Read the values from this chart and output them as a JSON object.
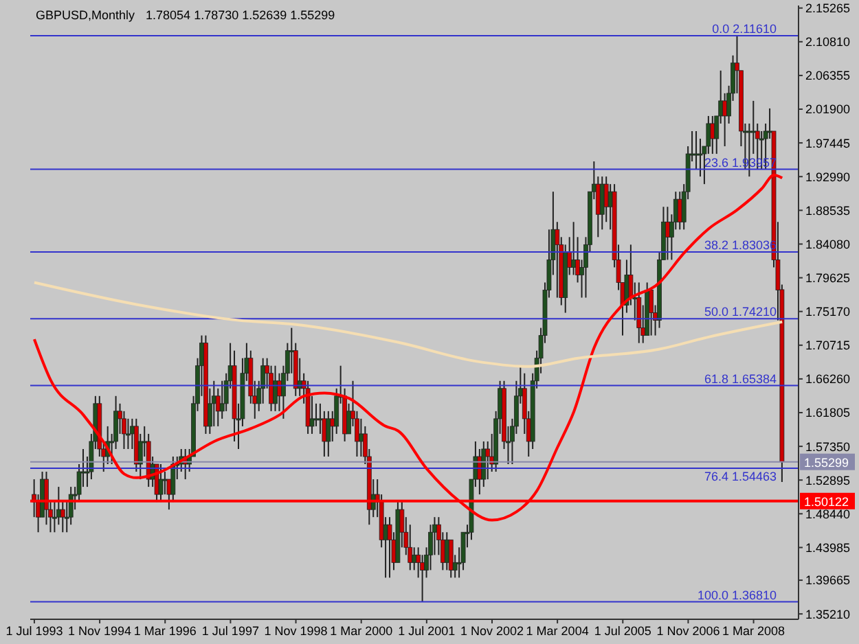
{
  "chart_data": {
    "type": "candlestick",
    "title": "GBPUSD,Monthly",
    "subtitle": "1.78054 1.78730 1.52639 1.55299",
    "x": [
      "1993-07",
      "1993-08",
      "1993-09",
      "1993-10",
      "1993-11",
      "1993-12",
      "1994-01",
      "1994-02",
      "1994-03",
      "1994-04",
      "1994-05",
      "1994-06",
      "1994-07",
      "1994-08",
      "1994-09",
      "1994-10",
      "1994-11",
      "1994-12",
      "1995-01",
      "1995-02",
      "1995-03",
      "1995-04",
      "1995-05",
      "1995-06",
      "1995-07",
      "1995-08",
      "1995-09",
      "1995-10",
      "1995-11",
      "1995-12",
      "1996-01",
      "1996-02",
      "1996-03",
      "1996-04",
      "1996-05",
      "1996-06",
      "1996-07",
      "1996-08",
      "1996-09",
      "1996-10",
      "1996-11",
      "1996-12",
      "1997-01",
      "1997-02",
      "1997-03",
      "1997-04",
      "1997-05",
      "1997-06",
      "1997-07",
      "1997-08",
      "1997-09",
      "1997-10",
      "1997-11",
      "1997-12",
      "1998-01",
      "1998-02",
      "1998-03",
      "1998-04",
      "1998-05",
      "1998-06",
      "1998-07",
      "1998-08",
      "1998-09",
      "1998-10",
      "1998-11",
      "1998-12",
      "1999-01",
      "1999-02",
      "1999-03",
      "1999-04",
      "1999-05",
      "1999-06",
      "1999-07",
      "1999-08",
      "1999-09",
      "1999-10",
      "1999-11",
      "1999-12",
      "2000-01",
      "2000-02",
      "2000-03",
      "2000-04",
      "2000-05",
      "2000-06",
      "2000-07",
      "2000-08",
      "2000-09",
      "2000-10",
      "2000-11",
      "2000-12",
      "2001-01",
      "2001-02",
      "2001-03",
      "2001-04",
      "2001-05",
      "2001-06",
      "2001-07",
      "2001-08",
      "2001-09",
      "2001-10",
      "2001-11",
      "2001-12",
      "2002-01",
      "2002-02",
      "2002-03",
      "2002-04",
      "2002-05",
      "2002-06",
      "2002-07",
      "2002-08",
      "2002-09",
      "2002-10",
      "2002-11",
      "2002-12",
      "2003-01",
      "2003-02",
      "2003-03",
      "2003-04",
      "2003-05",
      "2003-06",
      "2003-07",
      "2003-08",
      "2003-09",
      "2003-10",
      "2003-11",
      "2003-12",
      "2004-01",
      "2004-02",
      "2004-03",
      "2004-04",
      "2004-05",
      "2004-06",
      "2004-07",
      "2004-08",
      "2004-09",
      "2004-10",
      "2004-11",
      "2004-12",
      "2005-01",
      "2005-02",
      "2005-03",
      "2005-04",
      "2005-05",
      "2005-06",
      "2005-07",
      "2005-08",
      "2005-09",
      "2005-10",
      "2005-11",
      "2005-12",
      "2006-01",
      "2006-02",
      "2006-03",
      "2006-04",
      "2006-05",
      "2006-06",
      "2006-07",
      "2006-08",
      "2006-09",
      "2006-10",
      "2006-11",
      "2006-12",
      "2007-01",
      "2007-02",
      "2007-03",
      "2007-04",
      "2007-05",
      "2007-06",
      "2007-07",
      "2007-08",
      "2007-09",
      "2007-10",
      "2007-11",
      "2007-12",
      "2008-01",
      "2008-02",
      "2008-03",
      "2008-04",
      "2008-05",
      "2008-06",
      "2008-07",
      "2008-08",
      "2008-09",
      "2008-10"
    ],
    "ohlc": [
      [
        1.51,
        1.53,
        1.48,
        1.5
      ],
      [
        1.5,
        1.51,
        1.46,
        1.48
      ],
      [
        1.48,
        1.54,
        1.48,
        1.53
      ],
      [
        1.53,
        1.54,
        1.47,
        1.49
      ],
      [
        1.49,
        1.5,
        1.46,
        1.48
      ],
      [
        1.48,
        1.5,
        1.46,
        1.48
      ],
      [
        1.48,
        1.52,
        1.47,
        1.49
      ],
      [
        1.49,
        1.5,
        1.46,
        1.48
      ],
      [
        1.48,
        1.5,
        1.46,
        1.48
      ],
      [
        1.48,
        1.52,
        1.47,
        1.51
      ],
      [
        1.51,
        1.52,
        1.49,
        1.51
      ],
      [
        1.51,
        1.55,
        1.5,
        1.54
      ],
      [
        1.54,
        1.57,
        1.52,
        1.54
      ],
      [
        1.54,
        1.56,
        1.52,
        1.54
      ],
      [
        1.54,
        1.59,
        1.53,
        1.58
      ],
      [
        1.58,
        1.64,
        1.57,
        1.63
      ],
      [
        1.63,
        1.64,
        1.56,
        1.57
      ],
      [
        1.57,
        1.58,
        1.54,
        1.56
      ],
      [
        1.56,
        1.6,
        1.55,
        1.58
      ],
      [
        1.58,
        1.59,
        1.55,
        1.58
      ],
      [
        1.58,
        1.64,
        1.57,
        1.62
      ],
      [
        1.62,
        1.63,
        1.59,
        1.61
      ],
      [
        1.61,
        1.62,
        1.57,
        1.59
      ],
      [
        1.59,
        1.61,
        1.57,
        1.59
      ],
      [
        1.59,
        1.61,
        1.57,
        1.6
      ],
      [
        1.6,
        1.61,
        1.54,
        1.55
      ],
      [
        1.55,
        1.59,
        1.53,
        1.58
      ],
      [
        1.58,
        1.6,
        1.56,
        1.58
      ],
      [
        1.58,
        1.59,
        1.52,
        1.53
      ],
      [
        1.53,
        1.56,
        1.52,
        1.55
      ],
      [
        1.55,
        1.55,
        1.5,
        1.51
      ],
      [
        1.51,
        1.55,
        1.5,
        1.53
      ],
      [
        1.53,
        1.54,
        1.51,
        1.53
      ],
      [
        1.53,
        1.53,
        1.49,
        1.51
      ],
      [
        1.51,
        1.56,
        1.5,
        1.55
      ],
      [
        1.55,
        1.56,
        1.53,
        1.55
      ],
      [
        1.55,
        1.57,
        1.54,
        1.56
      ],
      [
        1.56,
        1.57,
        1.53,
        1.55
      ],
      [
        1.55,
        1.57,
        1.54,
        1.56
      ],
      [
        1.56,
        1.64,
        1.56,
        1.63
      ],
      [
        1.63,
        1.69,
        1.62,
        1.68
      ],
      [
        1.68,
        1.72,
        1.64,
        1.71
      ],
      [
        1.71,
        1.72,
        1.59,
        1.6
      ],
      [
        1.6,
        1.65,
        1.59,
        1.63
      ],
      [
        1.63,
        1.66,
        1.6,
        1.64
      ],
      [
        1.64,
        1.65,
        1.6,
        1.62
      ],
      [
        1.62,
        1.66,
        1.61,
        1.63
      ],
      [
        1.63,
        1.67,
        1.62,
        1.66
      ],
      [
        1.66,
        1.71,
        1.65,
        1.68
      ],
      [
        1.68,
        1.7,
        1.58,
        1.61
      ],
      [
        1.61,
        1.63,
        1.57,
        1.61
      ],
      [
        1.61,
        1.69,
        1.6,
        1.67
      ],
      [
        1.67,
        1.71,
        1.66,
        1.69
      ],
      [
        1.69,
        1.7,
        1.63,
        1.64
      ],
      [
        1.64,
        1.66,
        1.61,
        1.63
      ],
      [
        1.63,
        1.66,
        1.62,
        1.65
      ],
      [
        1.65,
        1.69,
        1.63,
        1.68
      ],
      [
        1.68,
        1.69,
        1.65,
        1.67
      ],
      [
        1.67,
        1.68,
        1.62,
        1.63
      ],
      [
        1.63,
        1.68,
        1.62,
        1.66
      ],
      [
        1.66,
        1.67,
        1.62,
        1.64
      ],
      [
        1.64,
        1.68,
        1.61,
        1.67
      ],
      [
        1.67,
        1.71,
        1.66,
        1.7
      ],
      [
        1.7,
        1.73,
        1.67,
        1.7
      ],
      [
        1.7,
        1.71,
        1.64,
        1.65
      ],
      [
        1.65,
        1.69,
        1.64,
        1.66
      ],
      [
        1.66,
        1.67,
        1.63,
        1.65
      ],
      [
        1.65,
        1.66,
        1.59,
        1.6
      ],
      [
        1.6,
        1.64,
        1.59,
        1.61
      ],
      [
        1.61,
        1.63,
        1.6,
        1.61
      ],
      [
        1.61,
        1.63,
        1.59,
        1.61
      ],
      [
        1.61,
        1.62,
        1.56,
        1.58
      ],
      [
        1.58,
        1.62,
        1.56,
        1.61
      ],
      [
        1.61,
        1.62,
        1.58,
        1.6
      ],
      [
        1.6,
        1.65,
        1.59,
        1.64
      ],
      [
        1.64,
        1.68,
        1.63,
        1.64
      ],
      [
        1.64,
        1.65,
        1.58,
        1.59
      ],
      [
        1.59,
        1.63,
        1.59,
        1.62
      ],
      [
        1.62,
        1.66,
        1.6,
        1.61
      ],
      [
        1.61,
        1.62,
        1.56,
        1.58
      ],
      [
        1.58,
        1.61,
        1.56,
        1.59
      ],
      [
        1.59,
        1.6,
        1.55,
        1.56
      ],
      [
        1.56,
        1.57,
        1.47,
        1.49
      ],
      [
        1.49,
        1.53,
        1.48,
        1.51
      ],
      [
        1.51,
        1.53,
        1.48,
        1.5
      ],
      [
        1.5,
        1.51,
        1.44,
        1.45
      ],
      [
        1.45,
        1.48,
        1.4,
        1.47
      ],
      [
        1.47,
        1.48,
        1.4,
        1.45
      ],
      [
        1.45,
        1.46,
        1.41,
        1.42
      ],
      [
        1.42,
        1.5,
        1.42,
        1.49
      ],
      [
        1.49,
        1.5,
        1.44,
        1.46
      ],
      [
        1.46,
        1.48,
        1.43,
        1.44
      ],
      [
        1.44,
        1.47,
        1.41,
        1.42
      ],
      [
        1.42,
        1.44,
        1.41,
        1.43
      ],
      [
        1.43,
        1.44,
        1.4,
        1.42
      ],
      [
        1.42,
        1.43,
        1.368,
        1.41
      ],
      [
        1.41,
        1.44,
        1.4,
        1.43
      ],
      [
        1.43,
        1.47,
        1.41,
        1.46
      ],
      [
        1.46,
        1.48,
        1.43,
        1.47
      ],
      [
        1.47,
        1.48,
        1.43,
        1.45
      ],
      [
        1.45,
        1.46,
        1.41,
        1.42
      ],
      [
        1.42,
        1.46,
        1.41,
        1.45
      ],
      [
        1.45,
        1.45,
        1.4,
        1.41
      ],
      [
        1.41,
        1.43,
        1.4,
        1.42
      ],
      [
        1.42,
        1.44,
        1.4,
        1.42
      ],
      [
        1.42,
        1.46,
        1.41,
        1.46
      ],
      [
        1.46,
        1.47,
        1.44,
        1.46
      ],
      [
        1.46,
        1.53,
        1.45,
        1.53
      ],
      [
        1.53,
        1.58,
        1.52,
        1.56
      ],
      [
        1.56,
        1.57,
        1.51,
        1.53
      ],
      [
        1.53,
        1.58,
        1.52,
        1.57
      ],
      [
        1.57,
        1.58,
        1.53,
        1.56
      ],
      [
        1.56,
        1.59,
        1.54,
        1.55
      ],
      [
        1.55,
        1.62,
        1.54,
        1.61
      ],
      [
        1.61,
        1.66,
        1.59,
        1.65
      ],
      [
        1.65,
        1.66,
        1.57,
        1.58
      ],
      [
        1.58,
        1.6,
        1.55,
        1.58
      ],
      [
        1.58,
        1.61,
        1.55,
        1.6
      ],
      [
        1.6,
        1.66,
        1.59,
        1.64
      ],
      [
        1.64,
        1.68,
        1.63,
        1.65
      ],
      [
        1.65,
        1.67,
        1.59,
        1.61
      ],
      [
        1.61,
        1.62,
        1.56,
        1.58
      ],
      [
        1.58,
        1.67,
        1.57,
        1.66
      ],
      [
        1.66,
        1.7,
        1.65,
        1.69
      ],
      [
        1.69,
        1.73,
        1.67,
        1.72
      ],
      [
        1.72,
        1.79,
        1.71,
        1.78
      ],
      [
        1.78,
        1.86,
        1.77,
        1.82
      ],
      [
        1.82,
        1.91,
        1.8,
        1.86
      ],
      [
        1.86,
        1.87,
        1.77,
        1.84
      ],
      [
        1.84,
        1.85,
        1.76,
        1.77
      ],
      [
        1.77,
        1.84,
        1.75,
        1.83
      ],
      [
        1.83,
        1.85,
        1.8,
        1.81
      ],
      [
        1.81,
        1.87,
        1.8,
        1.82
      ],
      [
        1.82,
        1.85,
        1.79,
        1.8
      ],
      [
        1.8,
        1.82,
        1.77,
        1.81
      ],
      [
        1.81,
        1.85,
        1.77,
        1.84
      ],
      [
        1.84,
        1.91,
        1.83,
        1.91
      ],
      [
        1.91,
        1.95,
        1.9,
        1.92
      ],
      [
        1.92,
        1.93,
        1.85,
        1.88
      ],
      [
        1.88,
        1.93,
        1.86,
        1.92
      ],
      [
        1.92,
        1.93,
        1.87,
        1.89
      ],
      [
        1.89,
        1.92,
        1.86,
        1.91
      ],
      [
        1.91,
        1.92,
        1.81,
        1.82
      ],
      [
        1.82,
        1.84,
        1.78,
        1.79
      ],
      [
        1.79,
        1.79,
        1.72,
        1.76
      ],
      [
        1.76,
        1.82,
        1.75,
        1.8
      ],
      [
        1.8,
        1.84,
        1.76,
        1.77
      ],
      [
        1.77,
        1.79,
        1.74,
        1.77
      ],
      [
        1.77,
        1.79,
        1.71,
        1.73
      ],
      [
        1.73,
        1.76,
        1.71,
        1.72
      ],
      [
        1.72,
        1.79,
        1.72,
        1.78
      ],
      [
        1.78,
        1.78,
        1.72,
        1.75
      ],
      [
        1.75,
        1.76,
        1.72,
        1.74
      ],
      [
        1.74,
        1.83,
        1.73,
        1.82
      ],
      [
        1.82,
        1.89,
        1.82,
        1.87
      ],
      [
        1.87,
        1.89,
        1.82,
        1.85
      ],
      [
        1.85,
        1.88,
        1.82,
        1.87
      ],
      [
        1.87,
        1.91,
        1.86,
        1.9
      ],
      [
        1.9,
        1.91,
        1.86,
        1.87
      ],
      [
        1.87,
        1.92,
        1.86,
        1.91
      ],
      [
        1.91,
        1.97,
        1.9,
        1.96
      ],
      [
        1.96,
        1.99,
        1.95,
        1.96
      ],
      [
        1.96,
        1.99,
        1.94,
        1.96
      ],
      [
        1.96,
        1.98,
        1.93,
        1.96
      ],
      [
        1.96,
        1.97,
        1.92,
        1.97
      ],
      [
        1.97,
        2.01,
        1.96,
        2.0
      ],
      [
        2.0,
        2.01,
        1.96,
        1.98
      ],
      [
        1.98,
        2.01,
        1.96,
        2.01
      ],
      [
        2.01,
        2.07,
        2.0,
        2.03
      ],
      [
        2.03,
        2.04,
        1.97,
        2.01
      ],
      [
        2.01,
        2.05,
        2.0,
        2.04
      ],
      [
        2.04,
        2.09,
        2.03,
        2.08
      ],
      [
        2.08,
        2.1161,
        2.04,
        2.07
      ],
      [
        2.07,
        2.07,
        1.97,
        1.99
      ],
      [
        1.99,
        2.0,
        1.94,
        1.99
      ],
      [
        1.99,
        2.0,
        1.93,
        1.99
      ],
      [
        1.99,
        2.03,
        1.96,
        1.99
      ],
      [
        1.99,
        2.0,
        1.94,
        1.98
      ],
      [
        1.98,
        1.99,
        1.94,
        1.98
      ],
      [
        1.98,
        2.0,
        1.94,
        1.99
      ],
      [
        1.99,
        2.02,
        1.98,
        1.99
      ],
      [
        1.99,
        1.99,
        1.81,
        1.82
      ],
      [
        1.82,
        1.87,
        1.74,
        1.78
      ],
      [
        1.78054,
        1.7873,
        1.52639,
        1.55299
      ]
    ],
    "series": [
      {
        "type": "line",
        "color": "#ff0000",
        "x": [
          "1993-07",
          "1993-11",
          "1994-07",
          "1994-12",
          "1995-05",
          "1995-08",
          "1996-02",
          "1996-08",
          "1997-03",
          "1997-12",
          "1998-07",
          "1999-01",
          "1999-06",
          "1999-12",
          "2000-09",
          "2000-12",
          "2001-07",
          "2002-03",
          "2002-11",
          "2003-05",
          "2003-10",
          "2004-03",
          "2004-07",
          "2004-12",
          "2005-07",
          "2006-04",
          "2006-10",
          "2007-04",
          "2007-11",
          "2008-05",
          "2008-08",
          "2008-10"
        ],
        "values": [
          1.715,
          1.661,
          1.615,
          1.579,
          1.537,
          1.532,
          1.54,
          1.558,
          1.58,
          1.597,
          1.615,
          1.64,
          1.644,
          1.637,
          1.6,
          1.594,
          1.544,
          1.501,
          1.476,
          1.487,
          1.515,
          1.572,
          1.619,
          1.704,
          1.761,
          1.79,
          1.829,
          1.861,
          1.886,
          1.914,
          1.932,
          1.928
        ]
      },
      {
        "type": "line",
        "color": "#f5deb3",
        "x": [
          "1993-07",
          "1995-08",
          "1997-09",
          "1998-10",
          "2000-12",
          "2002-07",
          "2003-08",
          "2004-08",
          "2006-04",
          "2007-04",
          "2008-10"
        ],
        "values": [
          1.79,
          1.761,
          1.74,
          1.735,
          1.711,
          1.686,
          1.679,
          1.69,
          1.702,
          1.718,
          1.738
        ]
      }
    ],
    "marker": "none",
    "line_style": "solid",
    "xlim": [
      "1993-06",
      "2009-02"
    ],
    "xticks": [
      {
        "value": "1993-07",
        "label": "1 Jul 1993"
      },
      {
        "value": "1994-11",
        "label": "1 Nov 1994"
      },
      {
        "value": "1996-03",
        "label": "1 Mar 1996"
      },
      {
        "value": "1997-07",
        "label": "1 Jul 1997"
      },
      {
        "value": "1998-11",
        "label": "1 Nov 1998"
      },
      {
        "value": "2000-03",
        "label": "1 Mar 2000"
      },
      {
        "value": "2001-07",
        "label": "1 Jul 2001"
      },
      {
        "value": "2002-11",
        "label": "1 Nov 2002"
      },
      {
        "value": "2004-03",
        "label": "1 Mar 2004"
      },
      {
        "value": "2005-07",
        "label": "1 Jul 2005"
      },
      {
        "value": "2006-11",
        "label": "1 Nov 2006"
      },
      {
        "value": "2008-03",
        "label": "1 Mar 2008"
      }
    ],
    "ylim": [
      1.345,
      2.156
    ],
    "yticks": [
      {
        "value": 2.15265,
        "label": "2.15265"
      },
      {
        "value": 2.1081,
        "label": "2.10810"
      },
      {
        "value": 2.06355,
        "label": "2.06355"
      },
      {
        "value": 2.019,
        "label": "2.01900"
      },
      {
        "value": 1.97445,
        "label": "1.97445"
      },
      {
        "value": 1.9299,
        "label": "1.92990"
      },
      {
        "value": 1.88535,
        "label": "1.88535"
      },
      {
        "value": 1.8408,
        "label": "1.84080"
      },
      {
        "value": 1.79625,
        "label": "1.79625"
      },
      {
        "value": 1.7517,
        "label": "1.75170"
      },
      {
        "value": 1.70715,
        "label": "1.70715"
      },
      {
        "value": 1.6626,
        "label": "1.66260"
      },
      {
        "value": 1.61805,
        "label": "1.61805"
      },
      {
        "value": 1.5735,
        "label": "1.57350"
      },
      {
        "value": 1.52895,
        "label": "1.52895"
      },
      {
        "value": 1.4844,
        "label": "1.48440"
      },
      {
        "value": 1.43985,
        "label": "1.43985"
      },
      {
        "value": 1.39665,
        "label": "1.39665"
      },
      {
        "value": 1.3521,
        "label": "1.35210"
      }
    ],
    "ref_lines": [
      {
        "axis": "y",
        "value": 2.1161,
        "label": "0.0  2.11610",
        "color": "#3333cc"
      },
      {
        "axis": "y",
        "value": 1.93957,
        "label": "23.6  1.93957",
        "color": "#3333cc"
      },
      {
        "axis": "y",
        "value": 1.83036,
        "label": "38.2  1.83036",
        "color": "#3333cc"
      },
      {
        "axis": "y",
        "value": 1.7421,
        "label": "50.0  1.74210",
        "color": "#3333cc"
      },
      {
        "axis": "y",
        "value": 1.65384,
        "label": "61.8  1.65384",
        "color": "#3333cc"
      },
      {
        "axis": "y",
        "value": 1.54463,
        "label": "76.4  1.54463",
        "color": "#3333cc"
      },
      {
        "axis": "y",
        "value": 1.3681,
        "label": "100.0  1.36810",
        "color": "#3333cc"
      },
      {
        "axis": "y",
        "value": 1.55299,
        "label": "1.55299",
        "color": "#8888aa"
      },
      {
        "axis": "y",
        "value": 1.50122,
        "label": "1.50122",
        "color": "#ff0000"
      }
    ]
  }
}
